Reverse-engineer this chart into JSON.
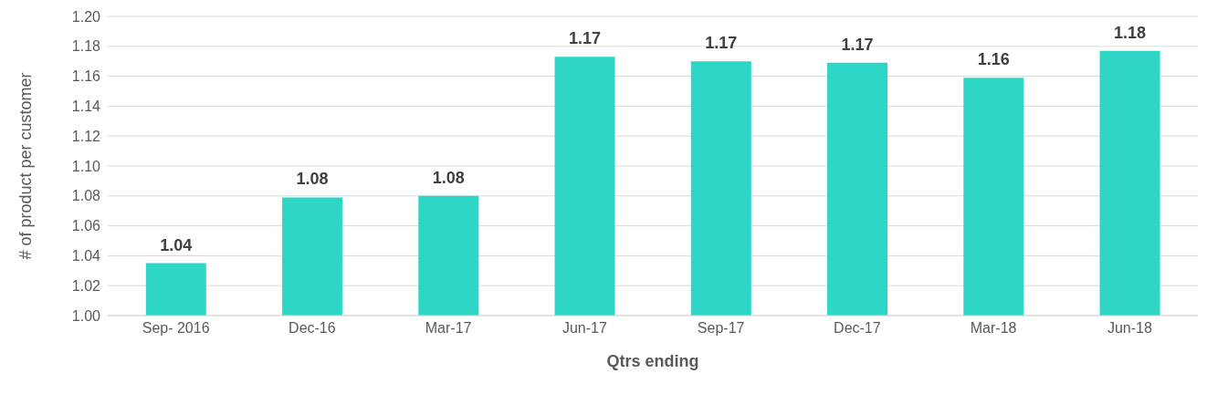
{
  "chart_data": {
    "type": "bar",
    "xlabel": "Qtrs ending",
    "ylabel": "# of product per customer",
    "categories": [
      "Sep- 2016",
      "Dec-16",
      "Mar-17",
      "Jun-17",
      "Sep-17",
      "Dec-17",
      "Mar-18",
      "Jun-18"
    ],
    "values": [
      1.035,
      1.079,
      1.08,
      1.173,
      1.17,
      1.169,
      1.159,
      1.177
    ],
    "value_labels": [
      "1.04",
      "1.08",
      "1.08",
      "1.17",
      "1.17",
      "1.17",
      "1.16",
      "1.18"
    ],
    "color": "#2dd6c5",
    "ylim": [
      1,
      1.2
    ],
    "yticks": [
      {
        "value": 1,
        "label": "1.00"
      },
      {
        "value": 1.02,
        "label": "1.02"
      },
      {
        "value": 1.04,
        "label": "1.04"
      },
      {
        "value": 1.06,
        "label": "1.06"
      },
      {
        "value": 1.08,
        "label": "1.08"
      },
      {
        "value": 1.1,
        "label": "1.10"
      },
      {
        "value": 1.12,
        "label": "1.12"
      },
      {
        "value": 1.14,
        "label": "1.14"
      },
      {
        "value": 1.16,
        "label": "1.16"
      },
      {
        "value": 1.18,
        "label": "1.18"
      },
      {
        "value": 1.2,
        "label": "1.20"
      }
    ],
    "grid": "y",
    "legend": false
  }
}
